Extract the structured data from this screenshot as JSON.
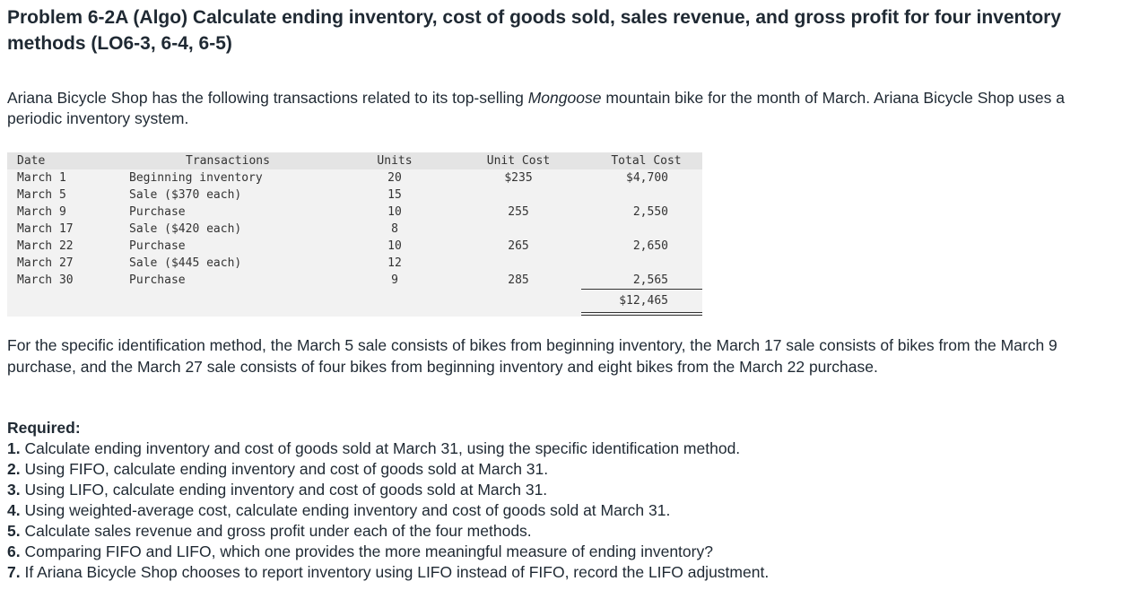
{
  "title": "Problem 6-2A (Algo) Calculate ending inventory, cost of goods sold, sales revenue, and gross profit for four inventory methods (LO6-3, 6-4, 6-5)",
  "intro": {
    "before": "Ariana Bicycle Shop has the following transactions related to its top-selling ",
    "italic": "Mongoose",
    "after": " mountain bike for the month of March. Ariana Bicycle Shop uses a periodic inventory system."
  },
  "table": {
    "headers": {
      "date": "Date",
      "transactions": "Transactions",
      "units": "Units",
      "unit_cost": "Unit Cost",
      "total_cost": "Total Cost"
    },
    "rows": [
      {
        "date": "March 1",
        "transaction": "Beginning inventory",
        "units": "20",
        "unit_cost": "$235",
        "total_cost": "$4,700"
      },
      {
        "date": "March 5",
        "transaction": "Sale ($370 each)",
        "units": "15",
        "unit_cost": "",
        "total_cost": ""
      },
      {
        "date": "March 9",
        "transaction": "Purchase",
        "units": "10",
        "unit_cost": "255",
        "total_cost": "2,550"
      },
      {
        "date": "March 17",
        "transaction": "Sale ($420 each)",
        "units": "8",
        "unit_cost": "",
        "total_cost": ""
      },
      {
        "date": "March 22",
        "transaction": "Purchase",
        "units": "10",
        "unit_cost": "265",
        "total_cost": "2,650"
      },
      {
        "date": "March 27",
        "transaction": "Sale ($445 each)",
        "units": "12",
        "unit_cost": "",
        "total_cost": ""
      },
      {
        "date": "March 30",
        "transaction": "Purchase",
        "units": "9",
        "unit_cost": "285",
        "total_cost": "2,565"
      }
    ],
    "total": "$12,465"
  },
  "specific_id_text": "For the specific identification method, the March 5 sale consists of bikes from beginning inventory, the March 17 sale consists of bikes from the March 9 purchase, and the March 27 sale consists of four bikes from beginning inventory and eight bikes from the March 22 purchase.",
  "required": {
    "heading": "Required:",
    "items": [
      {
        "num": "1.",
        "text": " Calculate ending inventory and cost of goods sold at March 31, using the specific identification method."
      },
      {
        "num": "2.",
        "text": " Using FIFO, calculate ending inventory and cost of goods sold at March 31."
      },
      {
        "num": "3.",
        "text": " Using LIFO, calculate ending inventory and cost of goods sold at March 31."
      },
      {
        "num": "4.",
        "text": " Using weighted-average cost, calculate ending inventory and cost of goods sold at March 31."
      },
      {
        "num": "5.",
        "text": " Calculate sales revenue and gross profit under each of the four methods."
      },
      {
        "num": "6.",
        "text": " Comparing FIFO and LIFO, which one provides the more meaningful measure of ending inventory?"
      },
      {
        "num": "7.",
        "text": " If Ariana Bicycle Shop chooses to report inventory using LIFO instead of FIFO, record the LIFO adjustment."
      }
    ]
  }
}
